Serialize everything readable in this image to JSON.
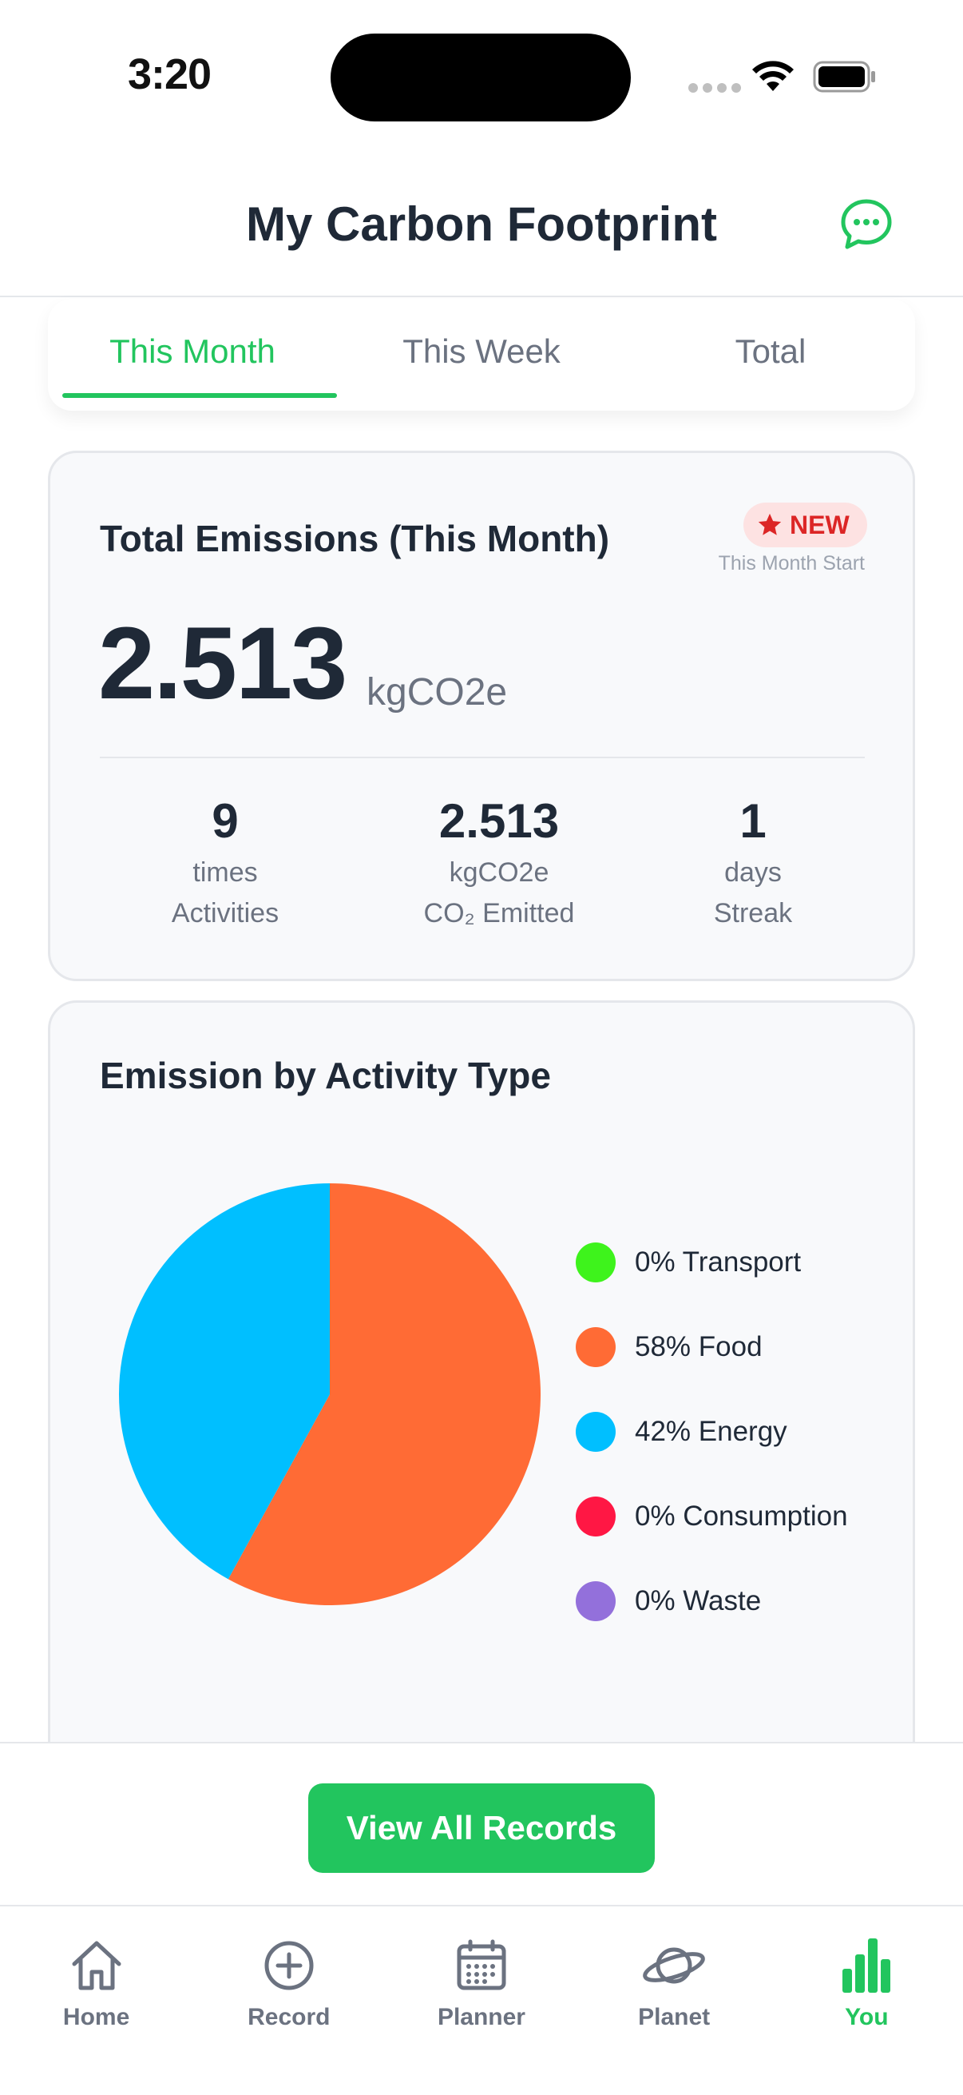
{
  "status": {
    "time": "3:20"
  },
  "header": {
    "title": "My Carbon Footprint",
    "chat_icon": "chat-bubble-icon"
  },
  "tabs": [
    {
      "label": "This Month",
      "active": true
    },
    {
      "label": "This Week",
      "active": false
    },
    {
      "label": "Total",
      "active": false
    }
  ],
  "emissions": {
    "title": "Total Emissions (This Month)",
    "badge": "NEW",
    "badge_sub": "This Month Start",
    "value": "2.513",
    "unit": "kgCO2e",
    "stats": [
      {
        "value": "9",
        "unit": "times",
        "label": "Activities"
      },
      {
        "value": "2.513",
        "unit": "kgCO2e",
        "label": "CO₂ Emitted"
      },
      {
        "value": "1",
        "unit": "days",
        "label": "Streak"
      }
    ]
  },
  "chart": {
    "title": "Emission by Activity Type",
    "legend": [
      {
        "label": "0% Transport",
        "color": "#3ef31c"
      },
      {
        "label": "58% Food",
        "color": "#ff6b35"
      },
      {
        "label": "42% Energy",
        "color": "#00bfff"
      },
      {
        "label": "0% Consumption",
        "color": "#ff1744"
      },
      {
        "label": "0% Waste",
        "color": "#9370db"
      }
    ]
  },
  "chart_data": {
    "type": "pie",
    "categories": [
      "Transport",
      "Food",
      "Energy",
      "Consumption",
      "Waste"
    ],
    "values": [
      0,
      58,
      42,
      0,
      0
    ],
    "colors": [
      "#3ef31c",
      "#ff6b35",
      "#00bfff",
      "#ff1744",
      "#9370db"
    ]
  },
  "actions": {
    "view_all": "View All Records"
  },
  "tabbar": [
    {
      "label": "Home",
      "icon": "home-icon",
      "active": false
    },
    {
      "label": "Record",
      "icon": "plus-circle-icon",
      "active": false
    },
    {
      "label": "Planner",
      "icon": "calendar-icon",
      "active": false
    },
    {
      "label": "Planet",
      "icon": "planet-icon",
      "active": false
    },
    {
      "label": "You",
      "icon": "bar-chart-icon",
      "active": true
    }
  ],
  "colors": {
    "accent": "#22c55e",
    "badge": "#dc2626"
  }
}
